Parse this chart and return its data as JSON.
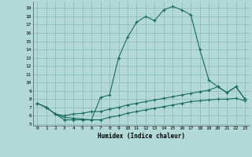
{
  "xlabel": "Humidex (Indice chaleur)",
  "bg_color": "#b2d8d8",
  "line_color": "#1a6b5a",
  "grid_color": "#8ab8b8",
  "xlim": [
    -0.5,
    23.5
  ],
  "ylim": [
    4.8,
    19.8
  ],
  "xticks": [
    0,
    1,
    2,
    3,
    4,
    5,
    6,
    7,
    8,
    9,
    10,
    11,
    12,
    13,
    14,
    15,
    16,
    17,
    18,
    19,
    20,
    21,
    22,
    23
  ],
  "yticks": [
    5,
    6,
    7,
    8,
    9,
    10,
    11,
    12,
    13,
    14,
    15,
    16,
    17,
    18,
    19
  ],
  "line1_x": [
    0,
    1,
    2,
    3,
    4,
    5,
    6,
    7,
    8,
    9,
    10,
    11,
    12,
    13,
    14,
    15,
    16,
    17,
    18,
    19,
    20,
    21,
    22,
    23
  ],
  "line1_y": [
    7.5,
    7.0,
    6.2,
    5.5,
    5.5,
    5.5,
    5.5,
    8.2,
    8.5,
    13.0,
    15.5,
    17.3,
    18.0,
    17.5,
    18.8,
    19.2,
    18.8,
    18.2,
    14.0,
    10.3,
    9.5,
    8.8,
    9.5,
    8.0
  ],
  "line2_x": [
    0,
    1,
    2,
    3,
    4,
    5,
    6,
    7,
    8,
    9,
    10,
    11,
    12,
    13,
    14,
    15,
    16,
    17,
    18,
    19,
    20,
    21,
    22,
    23
  ],
  "line2_y": [
    7.5,
    7.0,
    6.2,
    6.0,
    6.2,
    6.3,
    6.5,
    6.5,
    6.8,
    7.0,
    7.3,
    7.5,
    7.7,
    7.9,
    8.1,
    8.3,
    8.5,
    8.7,
    8.9,
    9.1,
    9.5,
    8.8,
    9.5,
    8.0
  ],
  "line3_x": [
    0,
    1,
    2,
    3,
    4,
    5,
    6,
    7,
    8,
    9,
    10,
    11,
    12,
    13,
    14,
    15,
    16,
    17,
    18,
    19,
    20,
    21,
    22,
    23
  ],
  "line3_y": [
    7.5,
    7.0,
    6.2,
    5.8,
    5.7,
    5.6,
    5.5,
    5.5,
    5.8,
    6.0,
    6.3,
    6.5,
    6.7,
    6.9,
    7.1,
    7.3,
    7.5,
    7.7,
    7.8,
    7.9,
    8.0,
    8.0,
    8.1,
    7.8
  ]
}
